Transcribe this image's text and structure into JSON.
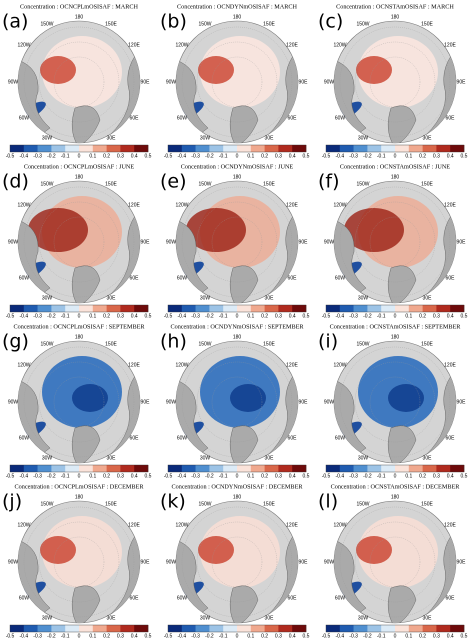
{
  "panels": [
    {
      "label": "(a)",
      "title": "Concentration : OCNCPLmOSISAF : MARCH"
    },
    {
      "label": "(b)",
      "title": "Concentration : OCNDYNmOSISAF : MARCH"
    },
    {
      "label": "(c)",
      "title": "Concentration : OCNSTAmOSISAF : MARCH"
    },
    {
      "label": "(d)",
      "title": "Concentration : OCNCPLmOSISAF : JUNE"
    },
    {
      "label": "(e)",
      "title": "Concentration : OCNDYNmOSISAF : JUNE"
    },
    {
      "label": "(f)",
      "title": "Concentration : OCNSTAmOSISAF : JUNE"
    },
    {
      "label": "(g)",
      "title": "Concentration : OCNCPLmOSISAF : SEPTEMBER"
    },
    {
      "label": "(h)",
      "title": "Concentration : OCNDYNmOSISAF : SEPTEMBER"
    },
    {
      "label": "(i)",
      "title": "Concentration : OCNSTAmOSISAF : SEPTEMBER"
    },
    {
      "label": "(j)",
      "title": "Concentration : OCNCPLmOSISAF : DECEMBER"
    },
    {
      "label": "(k)",
      "title": "Concentration : OCNDYNmOSISAF : DECEMBER"
    },
    {
      "label": "(l)",
      "title": "Concentration : OCNSTAmOSISAF : DECEMBER"
    }
  ],
  "lon_labels": [
    "180",
    "150W",
    "150E",
    "120W",
    "120E",
    "90W",
    "90E",
    "60W",
    "60E",
    "30W",
    "30E"
  ],
  "colorbar": {
    "ticks": [
      "-0.5",
      "-0.4",
      "-0.3",
      "-0.2",
      "-0.1",
      "0",
      "0.1",
      "0.2",
      "0.3",
      "0.4",
      "0.5"
    ],
    "colors": [
      "#0a2a7a",
      "#1f5bb0",
      "#4f8fd0",
      "#9cc3e6",
      "#dcebf7",
      "#fbe3da",
      "#f0a98f",
      "#d9674a",
      "#b02a1e",
      "#6e0a0a"
    ]
  }
}
